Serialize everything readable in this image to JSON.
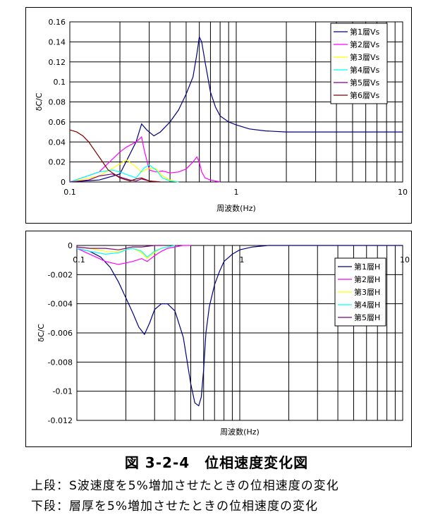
{
  "chart_data": [
    {
      "type": "line",
      "xscale": "log",
      "xlim": [
        0.1,
        10
      ],
      "ylim": [
        0,
        0.16
      ],
      "yticks": [
        "0.16",
        "0.14",
        "0.12",
        "0.1",
        "0.08",
        "0.06",
        "0.04",
        "0.02",
        "0"
      ],
      "xticks": [
        "0.1",
        "1",
        "10"
      ],
      "xlabel": "周波数(Hz)",
      "ylabel": "δC/C",
      "grid": true,
      "legend_position": "top-right",
      "series": [
        {
          "name": "第1層Vs",
          "color": "#000080",
          "x": [
            0.1,
            0.15,
            0.2,
            0.25,
            0.27,
            0.29,
            0.32,
            0.35,
            0.4,
            0.45,
            0.5,
            0.55,
            0.58,
            0.6,
            0.62,
            0.65,
            0.7,
            0.75,
            0.8,
            0.9,
            1.0,
            1.2,
            1.5,
            2,
            3,
            5,
            10
          ],
          "values": [
            0.0,
            0.002,
            0.008,
            0.04,
            0.058,
            0.052,
            0.046,
            0.05,
            0.06,
            0.072,
            0.088,
            0.105,
            0.128,
            0.145,
            0.14,
            0.12,
            0.09,
            0.075,
            0.066,
            0.06,
            0.057,
            0.053,
            0.051,
            0.05,
            0.05,
            0.05,
            0.05
          ]
        },
        {
          "name": "第2層Vs",
          "color": "#ff00ff",
          "x": [
            0.1,
            0.15,
            0.2,
            0.22,
            0.25,
            0.27,
            0.28,
            0.3,
            0.33,
            0.36,
            0.4,
            0.45,
            0.5,
            0.55,
            0.58,
            0.6,
            0.62,
            0.65,
            0.7,
            0.75,
            0.8
          ],
          "values": [
            0.0,
            0.01,
            0.03,
            0.035,
            0.04,
            0.045,
            0.032,
            0.012,
            0.01,
            0.011,
            0.009,
            0.01,
            0.013,
            0.02,
            0.025,
            0.02,
            0.01,
            0.004,
            0.002,
            0.001,
            0.0
          ]
        },
        {
          "name": "第3層Vs",
          "color": "#ffff00",
          "x": [
            0.1,
            0.15,
            0.2,
            0.22,
            0.25,
            0.27,
            0.3,
            0.33,
            0.36,
            0.4,
            0.45
          ],
          "values": [
            0.0,
            0.006,
            0.018,
            0.022,
            0.015,
            0.01,
            0.014,
            0.013,
            0.006,
            0.002,
            0.0
          ]
        },
        {
          "name": "第4層Vs",
          "color": "#00ffff",
          "x": [
            0.1,
            0.15,
            0.18,
            0.2,
            0.25,
            0.28,
            0.3,
            0.33,
            0.36,
            0.4,
            0.45
          ],
          "values": [
            0.0,
            0.01,
            0.012,
            0.01,
            0.004,
            0.014,
            0.017,
            0.012,
            0.004,
            0.001,
            0.0
          ]
        },
        {
          "name": "第5層Vs",
          "color": "#800080",
          "x": [
            0.1,
            0.13,
            0.15,
            0.18,
            0.2,
            0.23,
            0.25,
            0.27,
            0.3,
            0.35
          ],
          "values": [
            0.0,
            0.002,
            0.006,
            0.008,
            0.005,
            0.002,
            0.001,
            0.003,
            0.001,
            0.0
          ]
        },
        {
          "name": "第6層Vs",
          "color": "#800000",
          "x": [
            0.1,
            0.11,
            0.12,
            0.13,
            0.15,
            0.17,
            0.2,
            0.23,
            0.25,
            0.27,
            0.3,
            0.35
          ],
          "values": [
            0.052,
            0.05,
            0.046,
            0.04,
            0.025,
            0.012,
            0.004,
            0.001,
            0.003,
            0.004,
            0.001,
            0.0
          ]
        }
      ]
    },
    {
      "type": "line",
      "xscale": "log",
      "xlim": [
        0.1,
        10
      ],
      "ylim": [
        -0.012,
        0
      ],
      "yticks": [
        "0",
        "-0.002",
        "-0.004",
        "-0.006",
        "-0.008",
        "-0.01",
        "-0.012"
      ],
      "xticks": [
        "0.1",
        "1",
        "10"
      ],
      "xlabel": "周波数(Hz)",
      "ylabel": "δC/C",
      "grid": true,
      "legend_position": "right",
      "series": [
        {
          "name": "第1層H",
          "color": "#000080",
          "x": [
            0.1,
            0.12,
            0.14,
            0.16,
            0.18,
            0.2,
            0.22,
            0.24,
            0.26,
            0.28,
            0.3,
            0.33,
            0.36,
            0.4,
            0.45,
            0.5,
            0.53,
            0.56,
            0.58,
            0.6,
            0.62,
            0.65,
            0.7,
            0.75,
            0.8,
            0.9,
            1.0,
            1.2,
            1.5,
            2,
            3,
            10
          ],
          "values": [
            -0.0002,
            -0.0004,
            -0.0008,
            -0.0015,
            -0.0025,
            -0.0036,
            -0.0046,
            -0.0056,
            -0.0061,
            -0.0053,
            -0.0044,
            -0.004,
            -0.004,
            -0.0045,
            -0.0063,
            -0.0095,
            -0.0108,
            -0.011,
            -0.0104,
            -0.0085,
            -0.006,
            -0.0042,
            -0.0027,
            -0.0018,
            -0.0011,
            -0.0006,
            -0.0003,
            -0.0001,
            0,
            0,
            0,
            0
          ]
        },
        {
          "name": "第2層H",
          "color": "#ff00ff",
          "x": [
            0.1,
            0.12,
            0.15,
            0.18,
            0.2,
            0.22,
            0.25,
            0.27,
            0.3,
            0.33,
            0.36,
            0.4,
            0.45,
            0.5
          ],
          "values": [
            -0.0002,
            -0.0006,
            -0.0011,
            -0.0013,
            -0.0012,
            -0.0011,
            -0.0009,
            -0.0011,
            -0.0007,
            -0.0004,
            -0.0002,
            -0.0001,
            0,
            0
          ]
        },
        {
          "name": "第3層H",
          "color": "#ffff00",
          "x": [
            0.1,
            0.12,
            0.15,
            0.18,
            0.2,
            0.22,
            0.25,
            0.27,
            0.3,
            0.33,
            0.36,
            0.4
          ],
          "values": [
            -0.0001,
            -0.0002,
            -0.0004,
            -0.0004,
            -0.0003,
            -0.0002,
            -0.0005,
            -0.0009,
            -0.0005,
            -0.0002,
            -0.0001,
            0
          ]
        },
        {
          "name": "第4層H",
          "color": "#00ffff",
          "x": [
            0.1,
            0.12,
            0.15,
            0.18,
            0.2,
            0.22,
            0.25,
            0.27,
            0.3,
            0.33,
            0.36,
            0.4
          ],
          "values": [
            -0.0002,
            -0.0004,
            -0.0006,
            -0.0005,
            -0.0003,
            -0.0002,
            -0.0004,
            -0.0008,
            -0.0004,
            -0.0002,
            -0.0001,
            0
          ]
        },
        {
          "name": "第5層H",
          "color": "#800080",
          "x": [
            0.1,
            0.12,
            0.15,
            0.18,
            0.2,
            0.22,
            0.25,
            0.3,
            0.35
          ],
          "values": [
            -0.0001,
            -0.0002,
            -0.0002,
            -0.0003,
            -0.0002,
            -0.0001,
            -0.0001,
            0,
            0
          ]
        }
      ]
    }
  ],
  "caption": {
    "title": "図 3-2-4　位相速度変化図",
    "line1": "上段：S波速度を5%増加させたときの位相速度の変化",
    "line2": "下段：層厚を5%増加させたときの位相速度の変化"
  }
}
